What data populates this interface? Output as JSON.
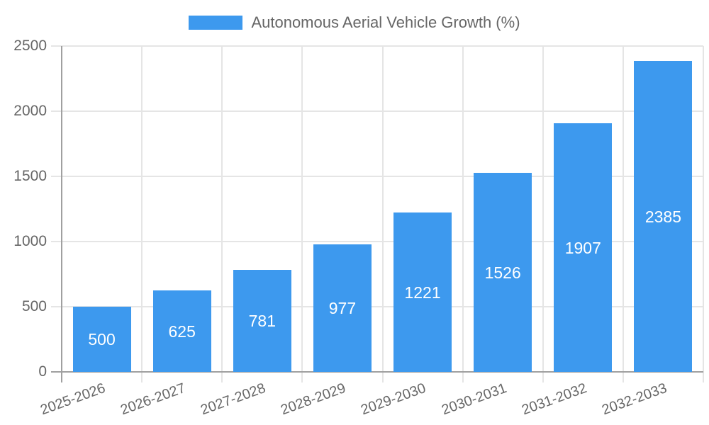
{
  "legend": {
    "label": "Autonomous Aerial Vehicle Growth (%)"
  },
  "chart_data": {
    "type": "bar",
    "title": "Autonomous Aerial Vehicle Growth (%)",
    "categories": [
      "2025-2026",
      "2026-2027",
      "2027-2028",
      "2028-2029",
      "2029-2030",
      "2030-2031",
      "2031-2032",
      "2032-2033"
    ],
    "values": [
      500,
      625,
      781,
      977,
      1221,
      1526,
      1907,
      2385
    ],
    "value_labels": [
      "500",
      "625",
      "781",
      "977",
      "1221",
      "1526",
      "1907",
      "2385"
    ],
    "y_ticks": [
      0,
      500,
      1000,
      1500,
      2000,
      2500
    ],
    "ylim": [
      0,
      2500
    ],
    "xlabel": "",
    "ylabel": "",
    "grid": true,
    "legend_position": "top",
    "value_label_position": "center-of-bar",
    "x_tick_rotation_deg": -20,
    "colors": {
      "bar": "#3d99ee",
      "tick_text": "#666666",
      "grid": "#e5e5e5",
      "axis": "#a0a0a0",
      "value_label": "#ffffff",
      "background": "#ffffff"
    }
  }
}
